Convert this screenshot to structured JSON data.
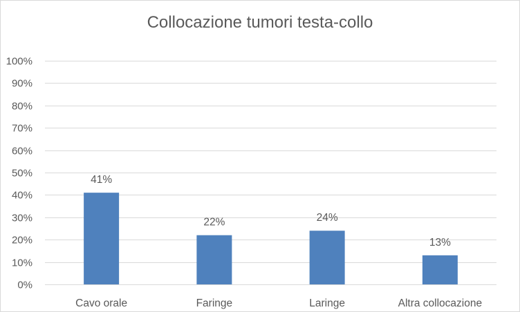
{
  "chart_data": {
    "type": "bar",
    "title": "Collocazione tumori testa-collo",
    "categories": [
      "Cavo orale",
      "Faringe",
      "Laringe",
      "Altra collocazione"
    ],
    "values": [
      41,
      22,
      24,
      13
    ],
    "data_labels": [
      "41%",
      "22%",
      "24%",
      "13%"
    ],
    "ylim": [
      0,
      100
    ],
    "yticks": [
      0,
      10,
      20,
      30,
      40,
      50,
      60,
      70,
      80,
      90,
      100
    ],
    "ytick_labels": [
      "0%",
      "10%",
      "20%",
      "30%",
      "40%",
      "50%",
      "60%",
      "70%",
      "80%",
      "90%",
      "100%"
    ],
    "xlabel": "",
    "ylabel": "",
    "grid": true,
    "legend": "none",
    "colors": {
      "bar": "#4f81bd",
      "grid": "#d9d9d9",
      "text": "#595959"
    }
  }
}
